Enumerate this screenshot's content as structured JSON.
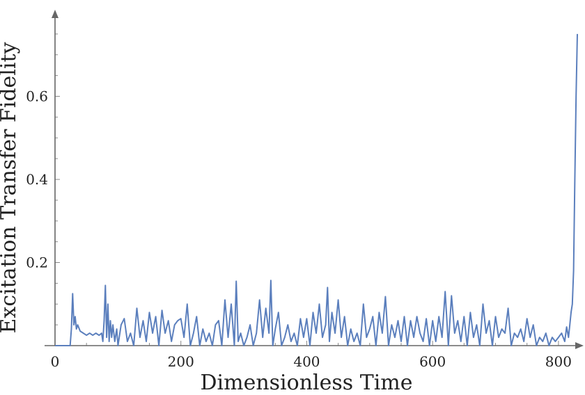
{
  "chart_data": {
    "type": "line",
    "title": "",
    "xlabel": "Dimensionless Time",
    "ylabel": "Excitation Transfer Fidelity",
    "xlim": [
      0,
      850
    ],
    "ylim": [
      0,
      0.78
    ],
    "x_ticks": [
      0,
      200,
      400,
      600,
      800
    ],
    "y_ticks": [
      0.2,
      0.4,
      0.6
    ],
    "x_tick_labels": [
      "0",
      "200",
      "400",
      "600",
      "800"
    ],
    "y_tick_labels": [
      "0.2",
      "0.4",
      "0.6"
    ],
    "grid": false,
    "line_color": "#5b7fbd",
    "series": [
      {
        "x": [
          0,
          24,
          26,
          28,
          30,
          32,
          34,
          36,
          40,
          45,
          50,
          55,
          60,
          65,
          70,
          74,
          76,
          78,
          80,
          82,
          84,
          86,
          88,
          90,
          92,
          95,
          98,
          100,
          105,
          110,
          115,
          120,
          125,
          130,
          135,
          140,
          145,
          150,
          155,
          160,
          165,
          170,
          175,
          180,
          185,
          190,
          195,
          200,
          205,
          210,
          215,
          220,
          225,
          230,
          235,
          240,
          245,
          250,
          255,
          260,
          265,
          270,
          275,
          280,
          285,
          288,
          291,
          295,
          300,
          305,
          310,
          315,
          320,
          325,
          330,
          335,
          340,
          343,
          346,
          350,
          355,
          360,
          365,
          370,
          375,
          380,
          385,
          390,
          395,
          400,
          405,
          410,
          415,
          420,
          425,
          430,
          433,
          436,
          440,
          445,
          450,
          455,
          460,
          465,
          470,
          475,
          480,
          485,
          490,
          495,
          500,
          505,
          510,
          515,
          520,
          525,
          530,
          535,
          540,
          545,
          550,
          555,
          560,
          565,
          570,
          575,
          580,
          585,
          590,
          595,
          600,
          605,
          610,
          615,
          620,
          625,
          630,
          635,
          640,
          645,
          650,
          655,
          660,
          665,
          670,
          675,
          680,
          685,
          690,
          695,
          700,
          705,
          710,
          715,
          720,
          725,
          730,
          735,
          740,
          745,
          750,
          755,
          760,
          765,
          770,
          775,
          780,
          785,
          790,
          795,
          800,
          805,
          810,
          813,
          816,
          818,
          820,
          822,
          824,
          826,
          828,
          830
        ],
        "y": [
          0,
          0.0,
          0.04,
          0.125,
          0.05,
          0.07,
          0.04,
          0.05,
          0.035,
          0.03,
          0.025,
          0.03,
          0.025,
          0.03,
          0.025,
          0.03,
          0.01,
          0.06,
          0.145,
          0.02,
          0.1,
          0.01,
          0.06,
          0.02,
          0.05,
          0.01,
          0.04,
          0.0,
          0.05,
          0.065,
          0.01,
          0.03,
          0.0,
          0.09,
          0.02,
          0.06,
          0.01,
          0.08,
          0.03,
          0.07,
          0.0,
          0.085,
          0.03,
          0.06,
          0.01,
          0.05,
          0.06,
          0.065,
          0.02,
          0.1,
          0.0,
          0.03,
          0.07,
          0.0,
          0.04,
          0.01,
          0.03,
          0.0,
          0.05,
          0.06,
          0.0,
          0.11,
          0.02,
          0.1,
          0.0,
          0.155,
          0.01,
          0.03,
          0.0,
          0.02,
          0.05,
          0.0,
          0.03,
          0.11,
          0.02,
          0.09,
          0.03,
          0.157,
          0.0,
          0.04,
          0.08,
          0.0,
          0.02,
          0.05,
          0.01,
          0.03,
          0.0,
          0.065,
          0.02,
          0.065,
          0.0,
          0.08,
          0.03,
          0.1,
          0.02,
          0.05,
          0.14,
          0.01,
          0.08,
          0.03,
          0.11,
          0.02,
          0.07,
          0.0,
          0.04,
          0.01,
          0.03,
          0.0,
          0.1,
          0.02,
          0.04,
          0.07,
          0.0,
          0.08,
          0.03,
          0.118,
          0.0,
          0.05,
          0.02,
          0.06,
          0.01,
          0.07,
          0.0,
          0.06,
          0.02,
          0.07,
          0.03,
          0.01,
          0.065,
          0.0,
          0.06,
          0.01,
          0.07,
          0.02,
          0.13,
          0.0,
          0.12,
          0.03,
          0.06,
          0.01,
          0.07,
          0.0,
          0.08,
          0.02,
          0.05,
          0.0,
          0.1,
          0.03,
          0.06,
          0.0,
          0.07,
          0.02,
          0.04,
          0.03,
          0.09,
          0.0,
          0.03,
          0.02,
          0.04,
          0.01,
          0.065,
          0.02,
          0.05,
          0.0,
          0.02,
          0.01,
          0.03,
          0.0,
          0.02,
          0.01,
          0.02,
          0.03,
          0.01,
          0.045,
          0.02,
          0.05,
          0.08,
          0.1,
          0.18,
          0.4,
          0.6,
          0.75
        ]
      }
    ]
  }
}
